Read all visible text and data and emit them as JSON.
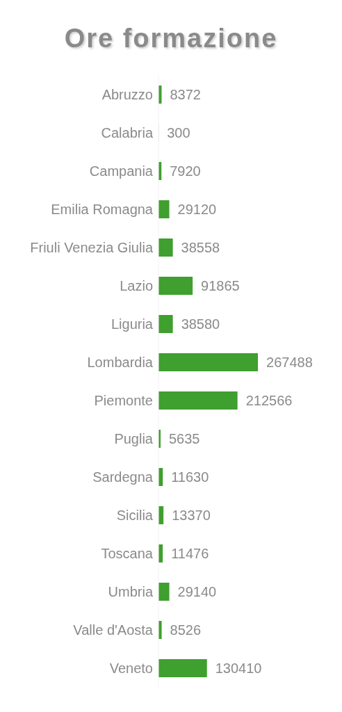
{
  "chart_data": {
    "type": "bar",
    "orientation": "horizontal",
    "title": "Ore formazione",
    "categories": [
      "Abruzzo",
      "Calabria",
      "Campania",
      "Emilia Romagna",
      "Friuli Venezia Giulia",
      "Lazio",
      "Liguria",
      "Lombardia",
      "Piemonte",
      "Puglia",
      "Sardegna",
      "Sicilia",
      "Toscana",
      "Umbria",
      "Valle d'Aosta",
      "Veneto"
    ],
    "values": [
      8372,
      300,
      7920,
      29120,
      38558,
      91865,
      38580,
      267488,
      212566,
      5635,
      11630,
      13370,
      11476,
      29140,
      8526,
      130410
    ],
    "color": "#3f9f2f",
    "data_labels": true
  }
}
